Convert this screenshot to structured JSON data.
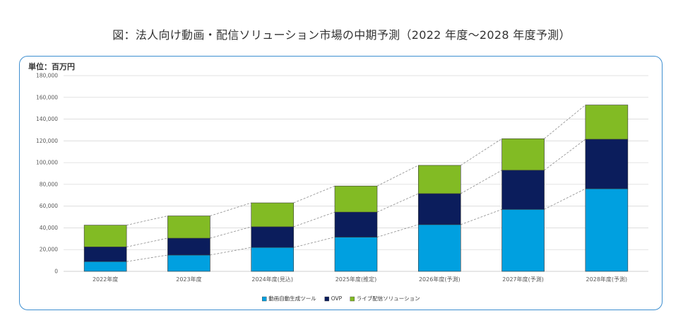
{
  "page": {
    "title": "図：法人向け動画・配信ソリューション市場の中期予測（2022 年度～2028 年度予測）"
  },
  "chart_data": {
    "type": "bar",
    "stacked": true,
    "unit_label": "単位：百万円",
    "categories": [
      "2022年度",
      "2023年度",
      "2024年度(見込)",
      "2025年度(推定)",
      "2026年度(予測)",
      "2027年度(予測)",
      "2028年度(予測)"
    ],
    "ylim": [
      0,
      180000
    ],
    "yticks": [
      0,
      20000,
      40000,
      60000,
      80000,
      100000,
      120000,
      140000,
      160000,
      180000
    ],
    "ytick_labels": [
      "0",
      "20,000",
      "40,000",
      "60,000",
      "80,000",
      "100,000",
      "120,000",
      "140,000",
      "160,000",
      "180,000"
    ],
    "grid": true,
    "legend_position": "bottom-center",
    "connector_lines": true,
    "series": [
      {
        "name": "動画自動生成ツール",
        "color": "#00a0e0",
        "values": [
          9000,
          15000,
          22000,
          31500,
          43000,
          57000,
          76000
        ]
      },
      {
        "name": "OVP",
        "color": "#0b1d5c",
        "values": [
          13500,
          15500,
          19000,
          23000,
          28500,
          36000,
          45500
        ]
      },
      {
        "name": "ライブ配信ソリューション",
        "color": "#82bb24",
        "values": [
          20000,
          20500,
          22000,
          24000,
          26000,
          29000,
          31500
        ]
      }
    ]
  }
}
